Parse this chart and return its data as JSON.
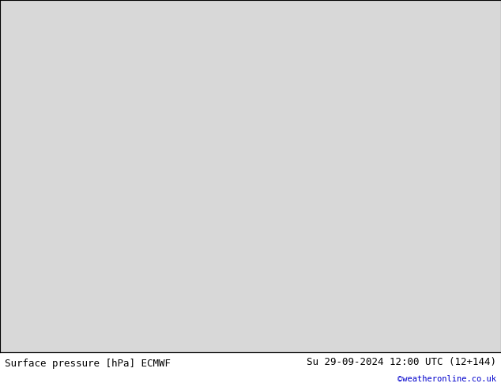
{
  "title_left": "Surface pressure [hPa] ECMWF",
  "title_right": "Su 29-09-2024 12:00 UTC (12+144)",
  "copyright": "©weatheronline.co.uk",
  "land_color": "#c8f0a0",
  "sea_color": "#d8d8d8",
  "contour_color": "#cc0000",
  "contour_color_blue": "#0000dd",
  "contour_color_black": "#000000",
  "label_color": "#cc0000",
  "bottom_bar_color": "#ffffff",
  "font_size_labels": 7,
  "font_size_bottom": 9,
  "contour_linewidth": 0.9,
  "lon_min": -12.5,
  "lon_max": 8.5,
  "lat_min": 33.5,
  "lat_max": 48.5
}
